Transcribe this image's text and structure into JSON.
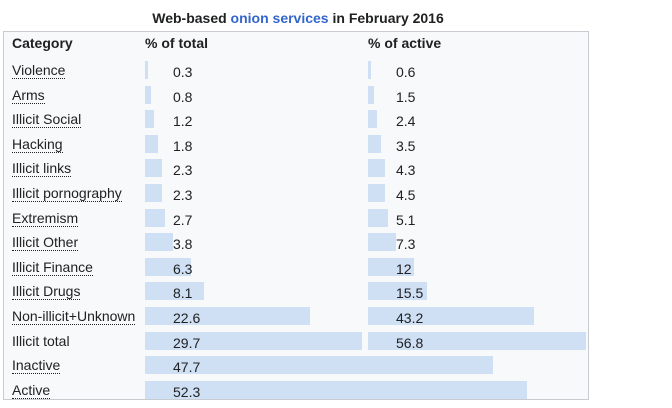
{
  "caption": {
    "prefix": "Web-based ",
    "link": "onion services",
    "suffix": " in February 2016"
  },
  "headers": {
    "category": "Category",
    "pct_total": "% of total",
    "pct_active": "% of active"
  },
  "colors": {
    "bar": "#cfe0f5",
    "link": "#3366cc",
    "border": "#c8ccd1"
  },
  "rows": [
    {
      "category": "Violence",
      "total": "0.3",
      "active": "0.6",
      "linked": true
    },
    {
      "category": "Arms",
      "total": "0.8",
      "active": "1.5",
      "linked": true
    },
    {
      "category": "Illicit Social",
      "total": "1.2",
      "active": "2.4",
      "linked": true
    },
    {
      "category": "Hacking",
      "total": "1.8",
      "active": "3.5",
      "linked": true
    },
    {
      "category": "Illicit links",
      "total": "2.3",
      "active": "4.3",
      "linked": true
    },
    {
      "category": "Illicit pornography",
      "total": "2.3",
      "active": "4.5",
      "linked": true
    },
    {
      "category": "Extremism",
      "total": "2.7",
      "active": "5.1",
      "linked": true
    },
    {
      "category": "Illicit Other",
      "total": "3.8",
      "active": "7.3",
      "linked": true
    },
    {
      "category": "Illicit Finance",
      "total": "6.3",
      "active": "12",
      "linked": true
    },
    {
      "category": "Illicit Drugs",
      "total": "8.1",
      "active": "15.5",
      "linked": true
    },
    {
      "category": "Non-illicit+Unknown",
      "total": "22.6",
      "active": "43.2",
      "linked": true
    },
    {
      "category": "Illicit total",
      "total": "29.7",
      "active": "56.8",
      "linked": false
    },
    {
      "category": "Inactive",
      "total": "47.7",
      "active": "",
      "linked": true
    },
    {
      "category": "Active",
      "total": "52.3",
      "active": "",
      "linked": true
    }
  ]
}
